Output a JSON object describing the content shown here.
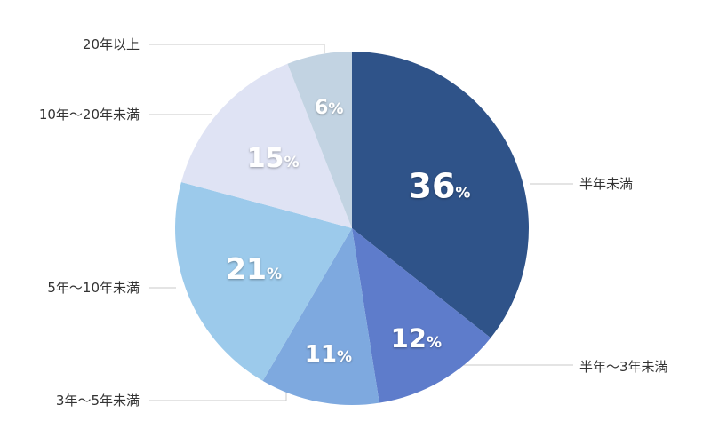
{
  "chart_data": {
    "type": "pie",
    "title": "",
    "categories": [
      "半年未満",
      "半年〜3年未満",
      "3年〜5年未満",
      "5年〜10年未満",
      "10年〜20年未満",
      "20年以上"
    ],
    "values": [
      36,
      12,
      11,
      21,
      15,
      6
    ],
    "value_labels": [
      "36",
      "12",
      "11",
      "21",
      "15",
      "6"
    ],
    "unit": "%",
    "colors": [
      "#2f5389",
      "#5e7ccb",
      "#7ea9df",
      "#9ccaeb",
      "#dfe3f4",
      "#c2d3e2"
    ],
    "start_angle": "12 o'clock",
    "direction": "clockwise",
    "legend": "none"
  }
}
